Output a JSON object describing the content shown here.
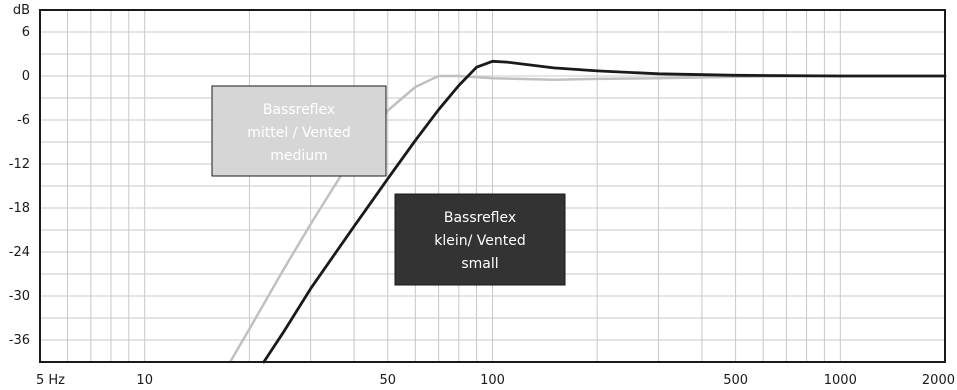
{
  "chart_data": {
    "type": "line",
    "title": "",
    "xlabel": "",
    "ylabel": "dB",
    "x_scale": "log",
    "xlim": [
      5,
      2000
    ],
    "ylim": [
      -39,
      9
    ],
    "x_tick_labels": [
      "5 Hz",
      "10",
      "50",
      "100",
      "500",
      "1000",
      "2000"
    ],
    "x_tick_values": [
      5,
      10,
      50,
      100,
      500,
      1000,
      2000
    ],
    "y_ticks": [
      6,
      0,
      -6,
      -12,
      -18,
      -24,
      -30,
      -36
    ],
    "y_unit_label": "dB",
    "grid": true,
    "series": [
      {
        "name": "Bassreflex mittel / Vented medium",
        "color": "#c0c0c0",
        "x": [
          17.6,
          20,
          25,
          30,
          40,
          50,
          60,
          70,
          80,
          100,
          150,
          200,
          300,
          500,
          1000,
          2000
        ],
        "y": [
          -39,
          -34.5,
          -26.5,
          -20.2,
          -10.7,
          -4.7,
          -1.5,
          0,
          0,
          -0.3,
          -0.5,
          -0.4,
          -0.3,
          -0.1,
          0,
          0
        ]
      },
      {
        "name": "Bassreflex klein/ Vented small",
        "color": "#1a1a1a",
        "x": [
          22,
          25,
          30,
          40,
          50,
          60,
          70,
          80,
          90,
          100,
          110,
          150,
          200,
          300,
          500,
          1000,
          2000
        ],
        "y": [
          -39,
          -35,
          -29,
          -20.5,
          -14,
          -8.8,
          -4.6,
          -1.3,
          1.2,
          2,
          1.9,
          1.1,
          0.7,
          0.3,
          0.1,
          0,
          0
        ]
      }
    ],
    "annotations": [
      {
        "series": "Bassreflex mittel / Vented medium",
        "lines": [
          "Bassreflex",
          "mittel / Vented",
          "medium"
        ],
        "box_color": "#d6d6d6",
        "text_color": "#ffffff"
      },
      {
        "series": "Bassreflex klein/ Vented small",
        "lines": [
          "Bassreflex",
          "klein/ Vented",
          "small"
        ],
        "box_color": "#333333",
        "text_color": "#ffffff"
      }
    ]
  }
}
